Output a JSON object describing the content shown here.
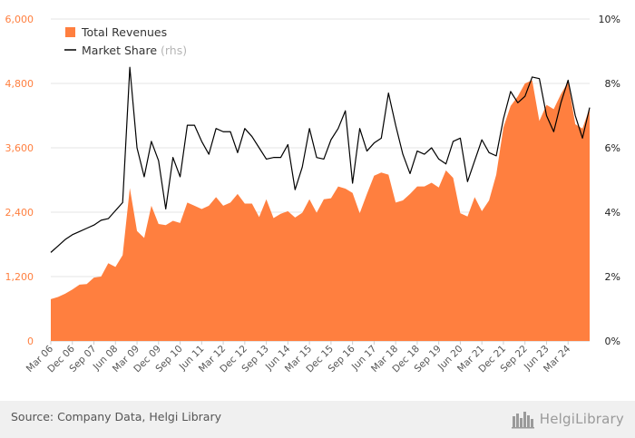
{
  "chart_data": {
    "type": "area+line",
    "categories": [
      "Mar 06",
      "Jun 06",
      "Sep 06",
      "Dec 06",
      "Mar 07",
      "Jun 07",
      "Sep 07",
      "Dec 07",
      "Mar 08",
      "Jun 08",
      "Sep 08",
      "Dec 08",
      "Mar 09",
      "Jun 09",
      "Sep 09",
      "Dec 09",
      "Mar 10",
      "Jun 10",
      "Sep 10",
      "Dec 10",
      "Mar 11",
      "Jun 11",
      "Sep 11",
      "Dec 11",
      "Mar 12",
      "Jun 12",
      "Sep 12",
      "Dec 12",
      "Mar 13",
      "Jun 13",
      "Sep 13",
      "Dec 13",
      "Mar 14",
      "Jun 14",
      "Sep 14",
      "Dec 14",
      "Mar 15",
      "Jun 15",
      "Sep 15",
      "Dec 15",
      "Mar 16",
      "Jun 16",
      "Sep 16",
      "Dec 16",
      "Mar 17",
      "Jun 17",
      "Sep 17",
      "Dec 17",
      "Mar 18",
      "Jun 18",
      "Sep 18",
      "Dec 18",
      "Mar 19",
      "Jun 19",
      "Sep 19",
      "Dec 19",
      "Mar 20",
      "Jun 20",
      "Sep 20",
      "Dec 20",
      "Mar 21",
      "Jun 21",
      "Sep 21",
      "Dec 21",
      "Mar 22",
      "Jun 22",
      "Sep 22",
      "Dec 22",
      "Mar 23",
      "Jun 23",
      "Sep 23",
      "Dec 23",
      "Mar 24",
      "Jun 24",
      "Sep 24",
      "Dec 24"
    ],
    "tick_labels": [
      "Mar 06",
      "Dec 06",
      "Sep 07",
      "Jun 08",
      "Mar 09",
      "Dec 09",
      "Sep 10",
      "Jun 11",
      "Mar 12",
      "Dec 12",
      "Sep 13",
      "Jun 14",
      "Mar 15",
      "Dec 15",
      "Sep 16",
      "Jun 17",
      "Mar 18",
      "Dec 18",
      "Sep 19",
      "Jun 20",
      "Mar 21",
      "Dec 21",
      "Sep 22",
      "Jun 23",
      "Mar 24"
    ],
    "series": [
      {
        "name": "Total Revenues",
        "type": "area",
        "axis": "left",
        "color": "#ff7f3f",
        "values": [
          780,
          820,
          880,
          960,
          1050,
          1060,
          1180,
          1200,
          1450,
          1380,
          1600,
          2850,
          2050,
          1920,
          2520,
          2180,
          2160,
          2240,
          2200,
          2580,
          2520,
          2460,
          2520,
          2680,
          2520,
          2580,
          2740,
          2560,
          2560,
          2310,
          2640,
          2290,
          2370,
          2420,
          2300,
          2390,
          2640,
          2390,
          2640,
          2660,
          2880,
          2840,
          2760,
          2380,
          2740,
          3080,
          3140,
          3100,
          2580,
          2620,
          2740,
          2880,
          2880,
          2950,
          2860,
          3180,
          3040,
          2380,
          2320,
          2680,
          2420,
          2620,
          3100,
          3980,
          4380,
          4560,
          4800,
          4860,
          4100,
          4400,
          4320,
          4600,
          4830,
          4040,
          3960,
          4340
        ]
      },
      {
        "name": "Market Share",
        "type": "line",
        "axis": "right",
        "color": "#000000",
        "values": [
          2.75,
          2.95,
          3.15,
          3.3,
          3.4,
          3.5,
          3.6,
          3.75,
          3.8,
          4.05,
          4.3,
          8.5,
          6.0,
          5.1,
          6.2,
          5.6,
          4.1,
          5.7,
          5.1,
          6.7,
          6.7,
          6.2,
          5.8,
          6.6,
          6.5,
          6.5,
          5.85,
          6.6,
          6.35,
          6.0,
          5.65,
          5.7,
          5.7,
          6.1,
          4.7,
          5.4,
          6.6,
          5.7,
          5.65,
          6.25,
          6.6,
          7.15,
          4.9,
          6.6,
          5.9,
          6.15,
          6.3,
          7.7,
          6.7,
          5.8,
          5.2,
          5.9,
          5.8,
          6.0,
          5.65,
          5.5,
          6.2,
          6.3,
          4.95,
          5.6,
          6.25,
          5.85,
          5.75,
          6.9,
          7.75,
          7.4,
          7.6,
          8.2,
          8.15,
          7.0,
          6.5,
          7.4,
          8.1,
          7.0,
          6.3,
          7.25
        ]
      }
    ],
    "left_axis": {
      "ylim": [
        0,
        6000
      ],
      "ticks": [
        "0",
        "1,200",
        "2,400",
        "3,600",
        "4,800",
        "6,000"
      ],
      "color": "#ff7f3f"
    },
    "right_axis": {
      "ylim": [
        0,
        10
      ],
      "ticks": [
        "0%",
        "2%",
        "4%",
        "6%",
        "8%",
        "10%"
      ]
    },
    "legend": {
      "placement": "top-left"
    },
    "grid": true
  },
  "legend": {
    "revenues_label": "Total Revenues",
    "market_share_label": "Market Share",
    "market_share_suffix": "(rhs)"
  },
  "footer": {
    "source": "Source: Company Data, Helgi Library",
    "logo_main": "Helgi",
    "logo_rest": "Library"
  }
}
